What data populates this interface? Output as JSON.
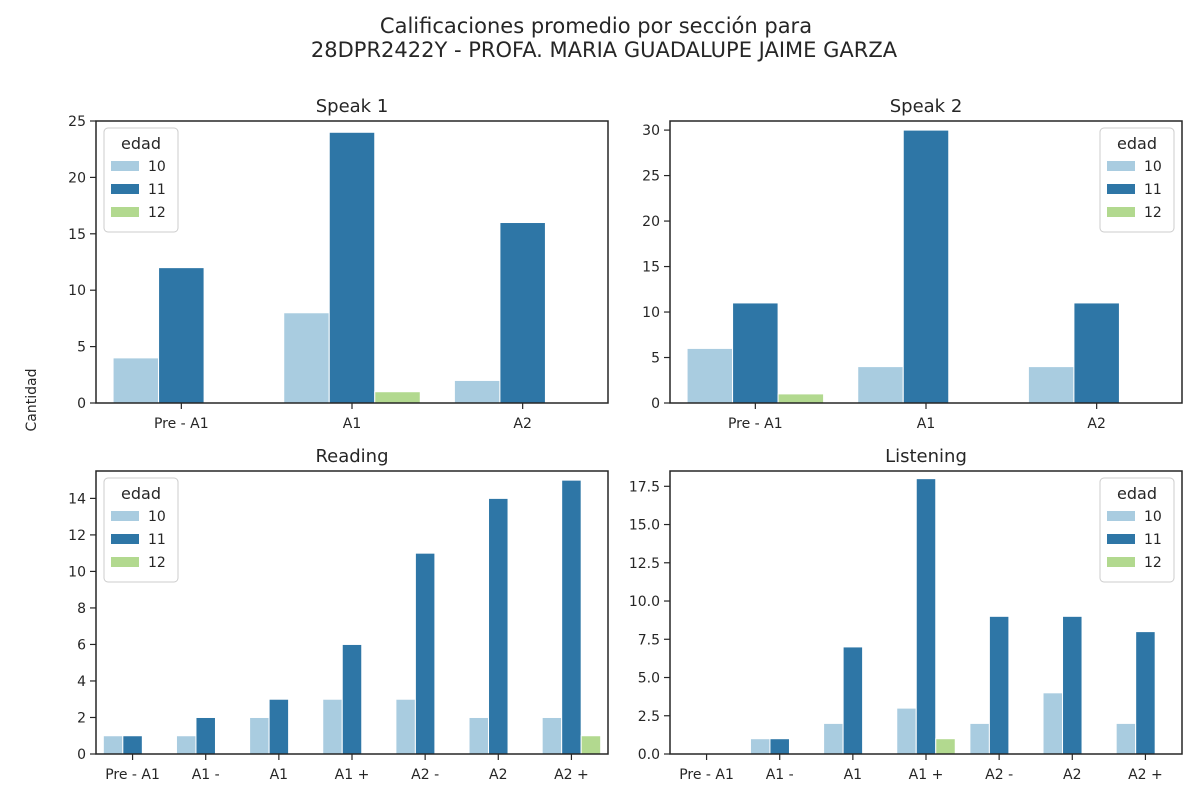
{
  "title_line1": "Calificaciones promedio por sección para",
  "title_line2": "28DPR2422Y - PROFA. MARIA GUADALUPE JAIME GARZA",
  "shared_ylabel": "Cantidad",
  "legend_title": "edad",
  "colors": {
    "10": "#a9cce0",
    "11": "#2e76a6",
    "12": "#b2d98f"
  },
  "chart_data": [
    {
      "type": "bar",
      "title": "Speak 1",
      "categories": [
        "Pre - A1",
        "A1",
        "A2"
      ],
      "ylim": [
        0,
        25
      ],
      "yticks": [
        "0",
        "5",
        "10",
        "15",
        "20",
        "25"
      ],
      "legend_position": "top-left",
      "series": [
        {
          "name": "10",
          "values": [
            4,
            8,
            2
          ]
        },
        {
          "name": "11",
          "values": [
            12,
            24,
            16
          ]
        },
        {
          "name": "12",
          "values": [
            0,
            1,
            0
          ]
        }
      ]
    },
    {
      "type": "bar",
      "title": "Speak 2",
      "categories": [
        "Pre - A1",
        "A1",
        "A2"
      ],
      "ylim": [
        0,
        31
      ],
      "yticks": [
        "0",
        "5",
        "10",
        "15",
        "20",
        "25",
        "30"
      ],
      "legend_position": "top-right",
      "series": [
        {
          "name": "10",
          "values": [
            6,
            4,
            4
          ]
        },
        {
          "name": "11",
          "values": [
            11,
            30,
            11
          ]
        },
        {
          "name": "12",
          "values": [
            1,
            0,
            0
          ]
        }
      ]
    },
    {
      "type": "bar",
      "title": "Reading",
      "categories": [
        "Pre - A1",
        "A1 -",
        "A1",
        "A1 +",
        "A2 -",
        "A2",
        "A2 +"
      ],
      "ylim": [
        0,
        15.5
      ],
      "yticks": [
        "0",
        "2",
        "4",
        "6",
        "8",
        "10",
        "12",
        "14"
      ],
      "legend_position": "top-left",
      "series": [
        {
          "name": "10",
          "values": [
            1,
            1,
            2,
            3,
            3,
            2,
            2
          ]
        },
        {
          "name": "11",
          "values": [
            1,
            2,
            3,
            6,
            11,
            14,
            15
          ]
        },
        {
          "name": "12",
          "values": [
            0,
            0,
            0,
            0,
            0,
            0,
            1
          ]
        }
      ]
    },
    {
      "type": "bar",
      "title": "Listening",
      "categories": [
        "Pre - A1",
        "A1 -",
        "A1",
        "A1 +",
        "A2 -",
        "A2",
        "A2 +"
      ],
      "ylim": [
        0,
        18.5
      ],
      "yticks": [
        "0.0",
        "2.5",
        "5.0",
        "7.5",
        "10.0",
        "12.5",
        "15.0",
        "17.5"
      ],
      "legend_position": "top-right",
      "series": [
        {
          "name": "10",
          "values": [
            0,
            1,
            2,
            3,
            2,
            4,
            2
          ]
        },
        {
          "name": "11",
          "values": [
            0,
            1,
            7,
            18,
            9,
            9,
            8
          ]
        },
        {
          "name": "12",
          "values": [
            0,
            0,
            0,
            1,
            0,
            0,
            0
          ]
        }
      ]
    }
  ]
}
